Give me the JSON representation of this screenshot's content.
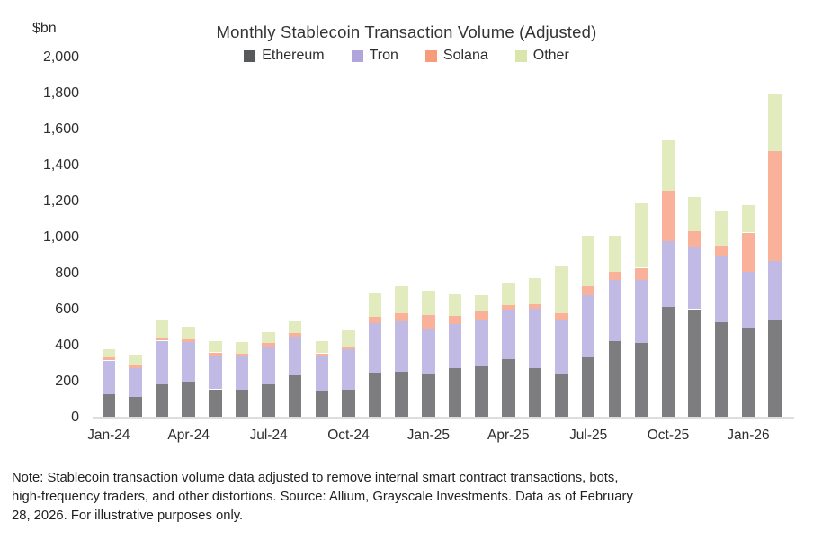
{
  "note": {
    "lines": [
      "Note: Stablecoin transaction volume data adjusted to remove internal smart contract transactions, bots,",
      "high-frequency traders, and other distortions. Source: Allium, Grayscale Investments. Data as of February",
      "28, 2026. For illustrative purposes only."
    ]
  },
  "chart_data": {
    "type": "bar",
    "stacked": true,
    "title": "Monthly Stablecoin Transaction Volume (Adjusted)",
    "ylabel": "$bn",
    "xlabel": "",
    "ylim": [
      0,
      2000
    ],
    "ytick_step": 200,
    "grid": false,
    "legend_position": "top",
    "bar_opacity": 0.78,
    "categories": [
      "Jan-24",
      "Feb-24",
      "Mar-24",
      "Apr-24",
      "May-24",
      "Jun-24",
      "Jul-24",
      "Aug-24",
      "Sep-24",
      "Oct-24",
      "Nov-24",
      "Dec-24",
      "Jan-25",
      "Feb-25",
      "Mar-25",
      "Apr-25",
      "May-25",
      "Jun-25",
      "Jul-25",
      "Aug-25",
      "Sep-25",
      "Oct-25",
      "Nov-25",
      "Dec-25",
      "Jan-26",
      "Feb-26"
    ],
    "x_tick_indices": [
      0,
      3,
      6,
      9,
      12,
      15,
      18,
      21,
      24
    ],
    "x_tick_labels": [
      "Jan-24",
      "Apr-24",
      "Jul-24",
      "Oct-24",
      "Jan-25",
      "Apr-25",
      "Jul-25",
      "Oct-25",
      "Jan-26"
    ],
    "series": [
      {
        "name": "Ethereum",
        "color": "#58595b",
        "values": [
          130,
          113,
          185,
          196,
          155,
          151,
          184,
          234,
          148,
          154,
          246,
          251,
          238,
          271,
          284,
          321,
          271,
          243,
          334,
          421,
          413,
          615,
          600,
          526,
          500,
          540
        ]
      },
      {
        "name": "Tron",
        "color": "#b0a6dc",
        "values": [
          185,
          159,
          240,
          222,
          188,
          187,
          209,
          212,
          195,
          225,
          276,
          283,
          255,
          246,
          253,
          275,
          330,
          295,
          342,
          342,
          350,
          365,
          348,
          370,
          310,
          330
        ]
      },
      {
        "name": "Solana",
        "color": "#f79b7d",
        "values": [
          18,
          16,
          17,
          17,
          17,
          13,
          21,
          22,
          12,
          14,
          37,
          42,
          75,
          47,
          50,
          25,
          28,
          38,
          50,
          46,
          67,
          280,
          85,
          58,
          215,
          610
        ]
      },
      {
        "name": "Other",
        "color": "#d9e5ab",
        "values": [
          45,
          58,
          95,
          70,
          62,
          67,
          57,
          67,
          68,
          88,
          129,
          150,
          134,
          120,
          89,
          125,
          142,
          262,
          283,
          200,
          358,
          280,
          190,
          189,
          152,
          320
        ]
      }
    ],
    "totals_approx": [
      378,
      346,
      537,
      505,
      422,
      418,
      471,
      535,
      423,
      481,
      688,
      726,
      702,
      684,
      676,
      746,
      771,
      838,
      1009,
      1009,
      1188,
      1540,
      1223,
      1143,
      1177,
      1800
    ]
  }
}
